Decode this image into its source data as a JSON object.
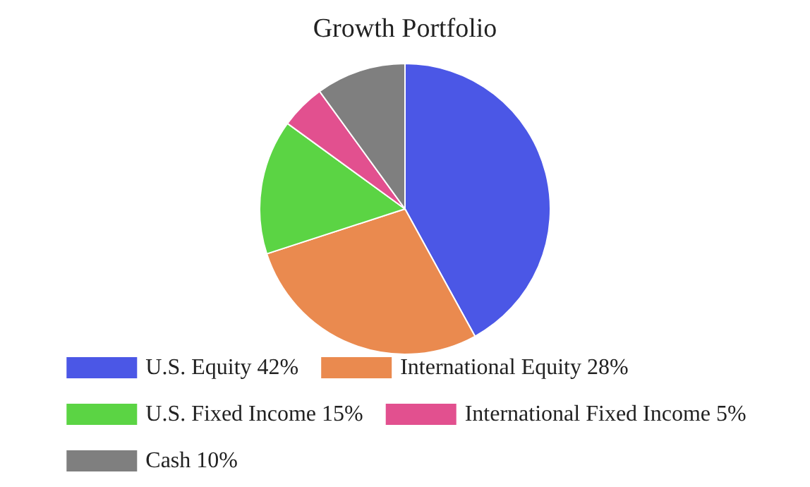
{
  "chart_data": {
    "type": "pie",
    "title": "Growth Portfolio",
    "categories": [
      "U.S. Equity 42%",
      "International Equity 28%",
      "U.S. Fixed Income 15%",
      "International Fixed Income 5%",
      "Cash 10%"
    ],
    "values": [
      42,
      28,
      15,
      5,
      10
    ],
    "colors": [
      "#4b57e6",
      "#ea8a4f",
      "#5bd444",
      "#e2508f",
      "#7f7f7f"
    ],
    "legend": "bottom"
  }
}
